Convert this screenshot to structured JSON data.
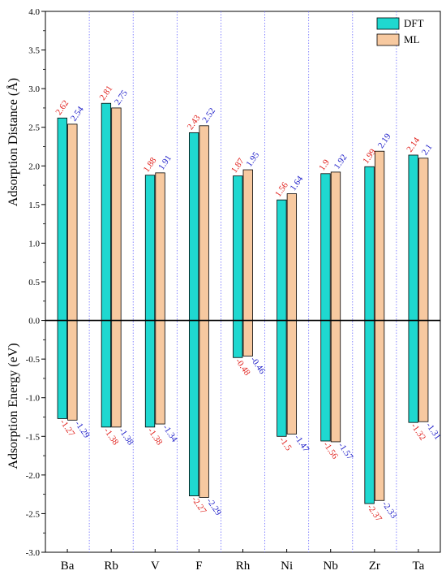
{
  "chart_data": {
    "type": "bar",
    "categories": [
      "Ba",
      "Rb",
      "V",
      "F",
      "Rh",
      "Ni",
      "Nb",
      "Zr",
      "Ta"
    ],
    "ylim": [
      -3.0,
      4.0
    ],
    "yticks": [
      "4.0",
      "3.5",
      "3.0",
      "2.5",
      "2.0",
      "1.5",
      "1.0",
      "0.5",
      "0.0",
      "-0.5",
      "-1.0",
      "-1.5",
      "-2.0",
      "-2.5",
      "-3.0"
    ],
    "ylabel_top": "Adsorption Distance (Å)",
    "ylabel_bottom": "Adsorption Energy (eV)",
    "legend_position": "top-right",
    "series": [
      {
        "name": "DFT",
        "color": "#1fd8d0",
        "label_color": "#e0201c",
        "distance": [
          2.62,
          2.81,
          1.88,
          2.43,
          1.87,
          1.56,
          1.9,
          1.99,
          2.14
        ],
        "distance_labels": [
          "2.62",
          "2.81",
          "1.88",
          "2.43",
          "1.87",
          "1.56",
          "1.9",
          "1.99",
          "2.14"
        ],
        "energy": [
          -1.27,
          -1.38,
          -1.38,
          -2.27,
          -0.48,
          -1.5,
          -1.56,
          -2.37,
          -1.32
        ],
        "energy_labels": [
          "-1.27",
          "-1.38",
          "-1.38",
          "-2.27",
          "-0.48",
          "-1.5",
          "-1.56",
          "-2.37",
          "-1.32"
        ]
      },
      {
        "name": "ML",
        "color": "#f7c9a0",
        "label_color": "#1c1cc8",
        "distance": [
          2.54,
          2.75,
          1.91,
          2.52,
          1.95,
          1.64,
          1.92,
          2.19,
          2.1
        ],
        "distance_labels": [
          "2.54",
          "2.75",
          "1.91",
          "2.52",
          "1.95",
          "1.64",
          "1.92",
          "2.19",
          "2.1"
        ],
        "energy": [
          -1.29,
          -1.38,
          -1.34,
          -2.29,
          -0.46,
          -1.47,
          -1.57,
          -2.33,
          -1.31
        ],
        "energy_labels": [
          "-1.29",
          "-1.38",
          "-1.34",
          "-2.29",
          "-0.46",
          "-1.47",
          "-1.57",
          "-2.33",
          "-1.31"
        ]
      }
    ]
  }
}
